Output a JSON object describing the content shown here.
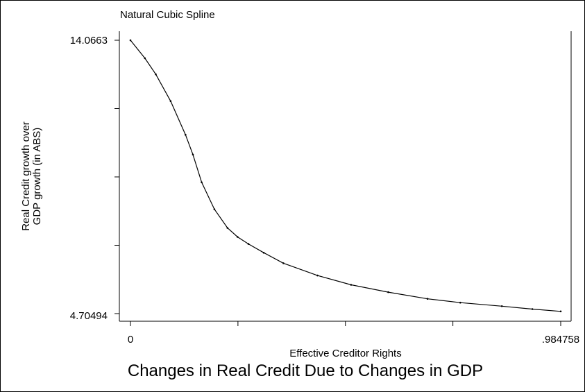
{
  "chart_data": {
    "type": "line",
    "title": "Changes in Real Credit Due to Changes in GDP",
    "subtitle": "Natural Cubic Spline",
    "xlabel": "Effective Creditor Rights",
    "ylabel_lines": [
      "Real Credit growth over",
      "GDP growth (in ABS)"
    ],
    "xlim": [
      0,
      0.984758
    ],
    "ylim": [
      4.70494,
      14.0663
    ],
    "x_tick_labels": [
      "0",
      ".984758"
    ],
    "y_tick_labels": [
      "14.0663",
      "4.70494"
    ],
    "x_ticks": [
      0,
      0.246,
      0.492,
      0.738,
      0.984758
    ],
    "y_ticks": [
      4.70494,
      7.045,
      9.386,
      11.726,
      14.0663
    ],
    "grid": false,
    "series": [
      {
        "line_color": "#000000",
        "x": [
          0,
          0.033,
          0.058,
          0.092,
          0.126,
          0.143,
          0.163,
          0.192,
          0.222,
          0.245,
          0.27,
          0.305,
          0.35,
          0.428,
          0.505,
          0.59,
          0.68,
          0.755,
          0.85,
          0.92,
          0.984758
        ],
        "y": [
          14.0663,
          13.45,
          12.9,
          11.98,
          10.83,
          10.15,
          9.2,
          8.28,
          7.64,
          7.33,
          7.09,
          6.79,
          6.43,
          6.01,
          5.69,
          5.44,
          5.21,
          5.08,
          4.96,
          4.86,
          4.78
        ]
      }
    ]
  }
}
